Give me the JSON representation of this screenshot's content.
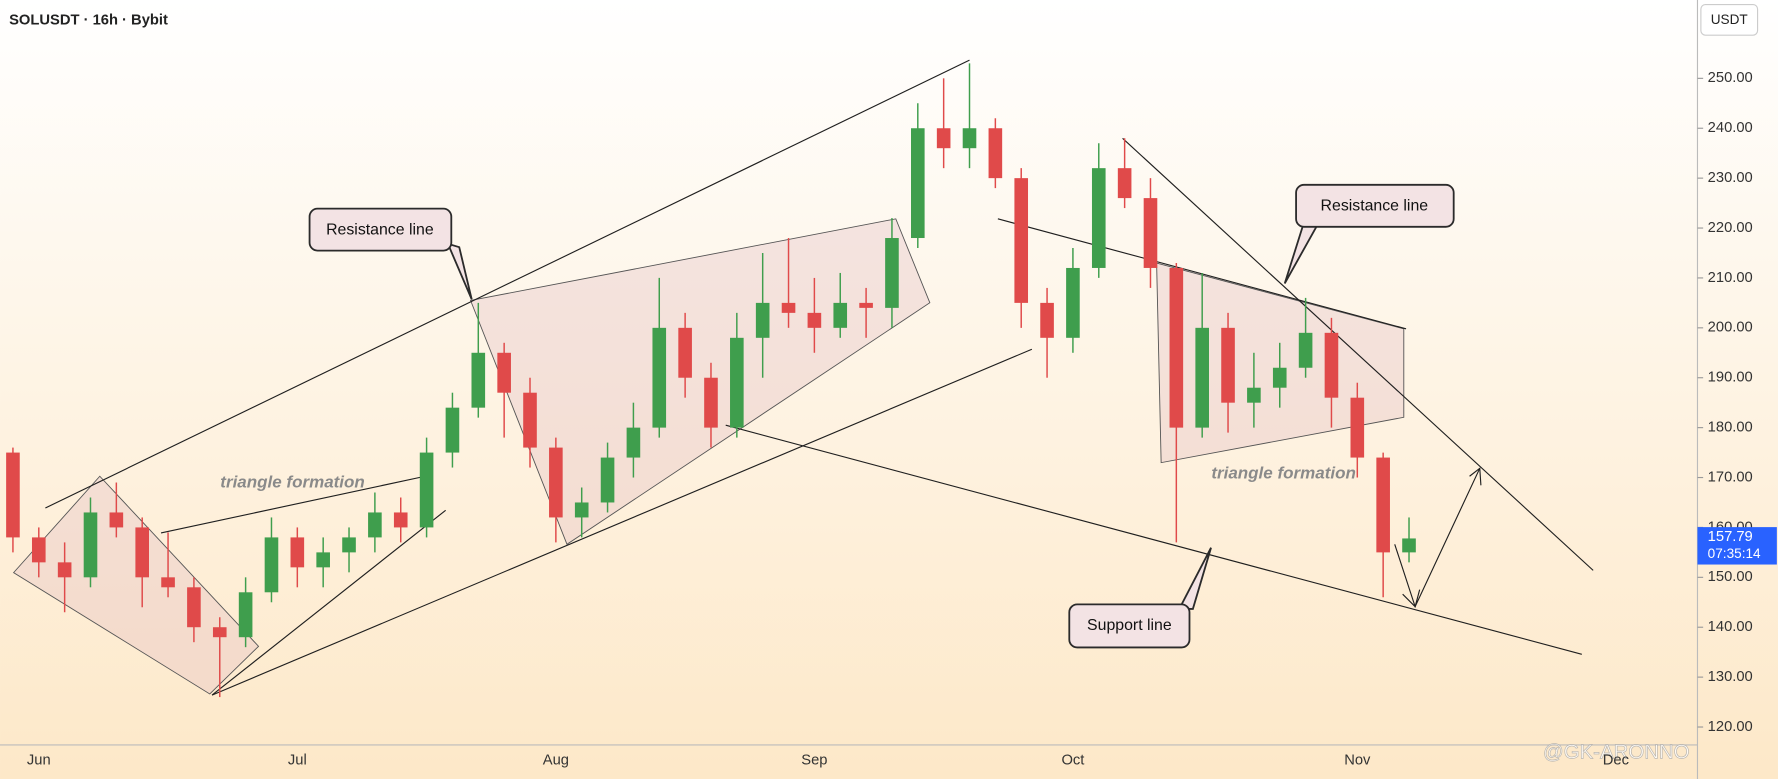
{
  "chart_data": {
    "type": "candlestick",
    "title": "SOLUSDT · 16h · Bybit",
    "currency": "USDT",
    "categories": [
      null,
      "Jun",
      null,
      null,
      null,
      null,
      null,
      null,
      null,
      null,
      null,
      "Jul",
      null,
      null,
      null,
      null,
      null,
      null,
      null,
      null,
      null,
      "Aug",
      null,
      null,
      null,
      null,
      null,
      null,
      null,
      null,
      null,
      "Sep",
      null,
      null,
      null,
      null,
      null,
      null,
      null,
      null,
      null,
      "Oct",
      null,
      null,
      null,
      null,
      null,
      null,
      null,
      null,
      null,
      null,
      "Nov",
      null,
      null,
      null,
      null,
      null,
      null,
      null,
      null,
      null,
      "Dec"
    ],
    "open": [
      175,
      158,
      153,
      150,
      163,
      160,
      150,
      148,
      140,
      138,
      147,
      158,
      152,
      155,
      158,
      163,
      160,
      175,
      184,
      195,
      187,
      176,
      162,
      165,
      174,
      180,
      200,
      190,
      180,
      198,
      205,
      203,
      200,
      205,
      204,
      218,
      240,
      236,
      240,
      230,
      205,
      198,
      212,
      232,
      226,
      212,
      180,
      200,
      185,
      188,
      192,
      199,
      186,
      174,
      155,
      null,
      null,
      null,
      null,
      null,
      null,
      null,
      null
    ],
    "high": [
      176,
      160,
      157,
      166,
      169,
      162,
      159,
      150,
      142,
      150,
      162,
      160,
      158,
      160,
      167,
      166,
      178,
      187,
      205,
      197,
      190,
      178,
      168,
      177,
      185,
      210,
      203,
      193,
      203,
      215,
      218,
      210,
      211,
      208,
      222,
      245,
      250,
      253,
      242,
      232,
      208,
      216,
      237,
      238,
      230,
      213,
      211,
      203,
      195,
      197,
      206,
      202,
      189,
      175,
      162,
      null,
      null,
      null,
      null,
      null,
      null,
      null,
      null
    ],
    "low": [
      155,
      150,
      143,
      148,
      158,
      144,
      146,
      137,
      126,
      136,
      145,
      148,
      148,
      151,
      155,
      157,
      158,
      172,
      182,
      178,
      172,
      157,
      158,
      163,
      170,
      178,
      186,
      176,
      178,
      190,
      200,
      195,
      198,
      198,
      200,
      216,
      232,
      232,
      228,
      200,
      190,
      195,
      210,
      224,
      208,
      157,
      178,
      179,
      180,
      184,
      190,
      180,
      170,
      146,
      153,
      null,
      null,
      null,
      null,
      null,
      null,
      null,
      null
    ],
    "close": [
      158,
      153,
      150,
      163,
      160,
      150,
      148,
      140,
      138,
      147,
      158,
      152,
      155,
      158,
      163,
      160,
      175,
      184,
      195,
      187,
      176,
      162,
      165,
      174,
      180,
      200,
      190,
      180,
      198,
      205,
      203,
      200,
      205,
      204,
      218,
      240,
      236,
      240,
      230,
      205,
      198,
      212,
      232,
      226,
      212,
      180,
      200,
      185,
      188,
      192,
      199,
      186,
      174,
      155,
      157.79,
      null,
      null,
      null,
      null,
      null,
      null,
      null,
      null
    ],
    "up_color": "#3f9e4d",
    "down_color": "#e04a4a",
    "ylim": [
      116.4,
      265.7
    ],
    "yticks": [
      {
        "value": 120,
        "label": "120.00"
      },
      {
        "value": 130,
        "label": "130.00"
      },
      {
        "value": 140,
        "label": "140.00"
      },
      {
        "value": 150,
        "label": "150.00"
      },
      {
        "value": 160,
        "label": "160.00"
      },
      {
        "value": 170,
        "label": "170.00"
      },
      {
        "value": 180,
        "label": "180.00"
      },
      {
        "value": 190,
        "label": "190.00"
      },
      {
        "value": 200,
        "label": "200.00"
      },
      {
        "value": 210,
        "label": "210.00"
      },
      {
        "value": 220,
        "label": "220.00"
      },
      {
        "value": 230,
        "label": "230.00"
      },
      {
        "value": 240,
        "label": "240.00"
      },
      {
        "value": 250,
        "label": "250.00"
      }
    ],
    "last_price": 157.79,
    "countdown": "07:35:14",
    "annotations": [
      "Resistance line",
      "Resistance line",
      "Support line",
      "triangle formation",
      "triangle formation"
    ],
    "watermark": "@GK-ARONNO"
  }
}
